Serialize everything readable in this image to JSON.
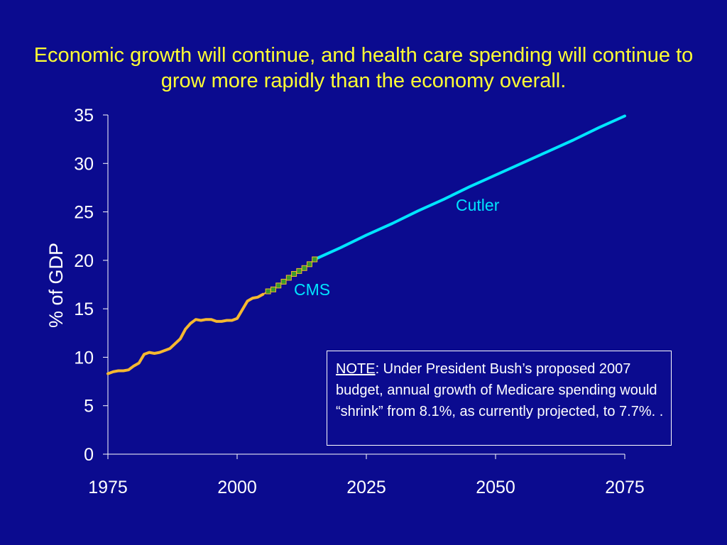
{
  "title": "Economic growth will continue, and health care spending will continue to grow more rapidly than the economy overall.",
  "note": {
    "label": "NOTE",
    "text": ": Under President Bush’s proposed 2007 budget, annual growth of Medicare spending would “shrink” from 8.1%, as currently projected, to 7.7%. ."
  },
  "colors": {
    "background": "#0b0b8f",
    "title": "#ffff33",
    "historical": "#f5b830",
    "cms_marker": "#3a9a2a",
    "cutler": "#00e5ff",
    "axis": "#ffffff"
  },
  "chart_data": {
    "type": "line",
    "ylabel": "% of GDP",
    "xlabel": "",
    "xlim": [
      1975,
      2075
    ],
    "ylim": [
      0,
      35
    ],
    "x_ticks": [
      1975,
      2000,
      2025,
      2050,
      2075
    ],
    "y_ticks": [
      0,
      5,
      10,
      15,
      20,
      25,
      30,
      35
    ],
    "grid": false,
    "series": [
      {
        "key": "historical",
        "style": "line",
        "points": [
          [
            1975,
            8.3
          ],
          [
            1976,
            8.5
          ],
          [
            1977,
            8.6
          ],
          [
            1978,
            8.6
          ],
          [
            1979,
            8.7
          ],
          [
            1980,
            9.1
          ],
          [
            1981,
            9.4
          ],
          [
            1982,
            10.3
          ],
          [
            1983,
            10.5
          ],
          [
            1984,
            10.4
          ],
          [
            1985,
            10.5
          ],
          [
            1986,
            10.7
          ],
          [
            1987,
            10.9
          ],
          [
            1988,
            11.4
          ],
          [
            1989,
            11.9
          ],
          [
            1990,
            12.9
          ],
          [
            1991,
            13.5
          ],
          [
            1992,
            13.9
          ],
          [
            1993,
            13.8
          ],
          [
            1994,
            13.9
          ],
          [
            1995,
            13.9
          ],
          [
            1996,
            13.7
          ],
          [
            1997,
            13.7
          ],
          [
            1998,
            13.8
          ],
          [
            1999,
            13.8
          ],
          [
            2000,
            14.0
          ],
          [
            2001,
            14.9
          ],
          [
            2002,
            15.8
          ],
          [
            2003,
            16.1
          ],
          [
            2004,
            16.2
          ],
          [
            2005,
            16.5
          ]
        ]
      },
      {
        "key": "cms",
        "name": "CMS",
        "style": "markers",
        "points": [
          [
            2006,
            16.8
          ],
          [
            2007,
            17.0
          ],
          [
            2008,
            17.4
          ],
          [
            2009,
            17.8
          ],
          [
            2010,
            18.2
          ],
          [
            2011,
            18.6
          ],
          [
            2012,
            18.9
          ],
          [
            2013,
            19.2
          ],
          [
            2014,
            19.6
          ],
          [
            2015,
            20.1
          ]
        ]
      },
      {
        "key": "cutler",
        "name": "Cutler",
        "style": "line",
        "points": [
          [
            2015,
            20.1
          ],
          [
            2020,
            21.3
          ],
          [
            2025,
            22.6
          ],
          [
            2030,
            23.8
          ],
          [
            2035,
            25.1
          ],
          [
            2040,
            26.3
          ],
          [
            2045,
            27.6
          ],
          [
            2050,
            28.8
          ],
          [
            2055,
            30.0
          ],
          [
            2060,
            31.2
          ],
          [
            2065,
            32.4
          ],
          [
            2070,
            33.7
          ],
          [
            2075,
            34.9
          ]
        ]
      }
    ],
    "annotations": [
      {
        "text": "CMS",
        "series": "cms"
      },
      {
        "text": "Cutler",
        "series": "cutler"
      }
    ]
  }
}
